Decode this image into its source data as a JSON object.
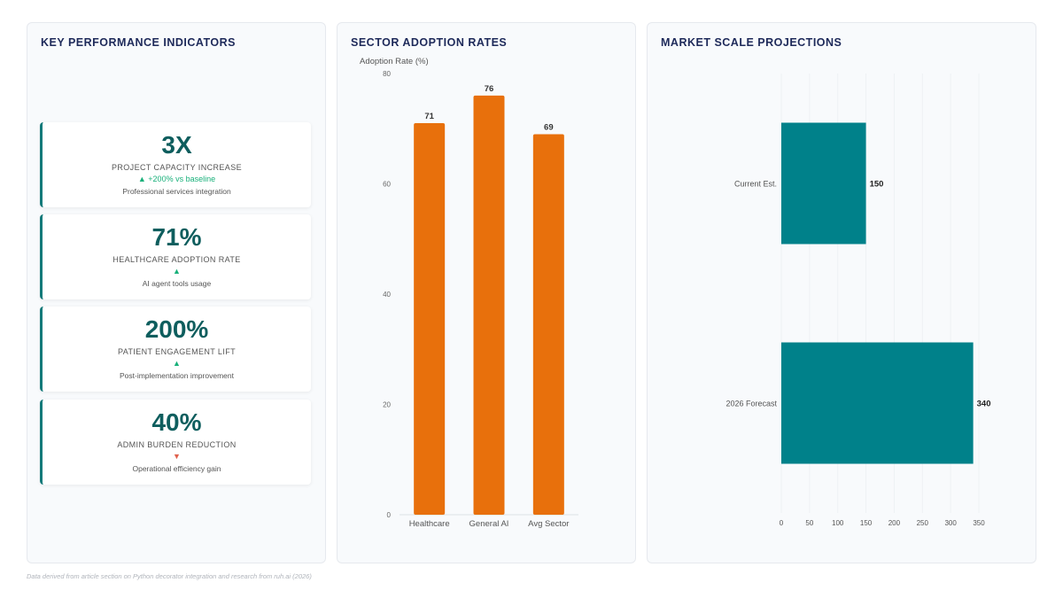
{
  "kpi_panel": {
    "title": "KEY PERFORMANCE INDICATORS",
    "cards": [
      {
        "value": "3X",
        "label": "PROJECT CAPACITY INCREASE",
        "delta": "▲ +200% vs baseline",
        "delta_dir": "up",
        "note": "Professional services integration"
      },
      {
        "value": "71%",
        "label": "HEALTHCARE ADOPTION RATE",
        "delta": "▲",
        "delta_dir": "up",
        "note": "AI agent tools usage"
      },
      {
        "value": "200%",
        "label": "PATIENT ENGAGEMENT LIFT",
        "delta": "▲",
        "delta_dir": "up",
        "note": "Post-implementation improvement"
      },
      {
        "value": "40%",
        "label": "ADMIN BURDEN REDUCTION",
        "delta": "▼",
        "delta_dir": "down",
        "note": "Operational efficiency gain"
      }
    ]
  },
  "sector_panel": {
    "title": "SECTOR ADOPTION RATES"
  },
  "market_panel": {
    "title": "MARKET SCALE PROJECTIONS"
  },
  "footer": {
    "note": "Data derived from article section on Python decorator integration and research from ruh.ai (2026)"
  },
  "colors": {
    "bar_orange": "#e8700c",
    "bar_teal": "#00818a",
    "title_navy": "#1e2a5a",
    "kpi_teal": "#0e5e5e"
  },
  "chart_data": [
    {
      "type": "bar",
      "ylabel": "Adoption Rate (%)",
      "categories": [
        "Healthcare",
        "General AI",
        "Avg Sector"
      ],
      "values": [
        71,
        76,
        69
      ],
      "ylim": [
        0,
        80
      ],
      "yticks": [
        0,
        20,
        40,
        60,
        80
      ],
      "color": "#e8700c"
    },
    {
      "type": "bar",
      "orientation": "horizontal",
      "categories": [
        "Current Est.",
        "2026 Forecast"
      ],
      "values": [
        150,
        340
      ],
      "xlim": [
        0,
        350
      ],
      "xticks": [
        0,
        50,
        100,
        150,
        200,
        250,
        300,
        350
      ],
      "color": "#00818a"
    }
  ]
}
